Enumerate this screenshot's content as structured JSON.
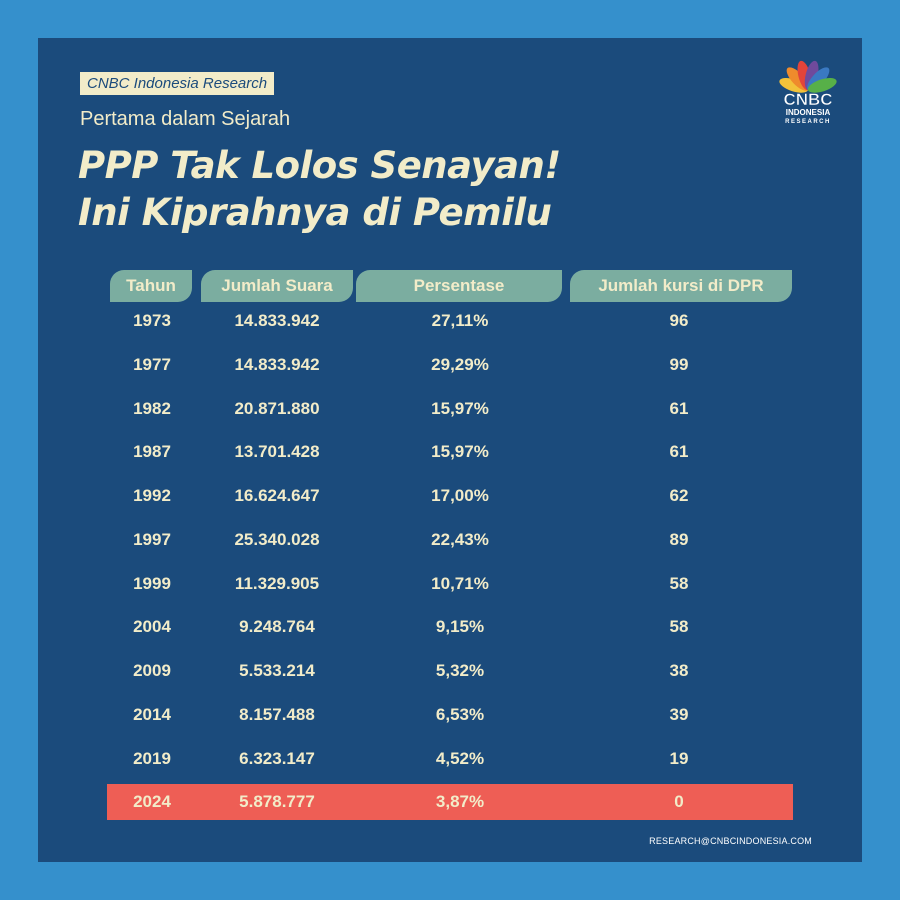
{
  "header": {
    "tag": "CNBC Indonesia Research",
    "subtitle": "Pertama dalam Sejarah",
    "title_line1": "PPP Tak Lolos Senayan!",
    "title_line2": "Ini Kiprahnya di Pemilu"
  },
  "logo": {
    "name": "CNBC",
    "line2": "INDONESIA",
    "line3": "RESEARCH",
    "petal_colors": [
      "#f2c23a",
      "#ef8b2c",
      "#e2443a",
      "#6f4a9c",
      "#3a79c2",
      "#57b048"
    ]
  },
  "table": {
    "headers": [
      "Tahun",
      "Jumlah Suara",
      "Persentase",
      "Jumlah kursi di DPR"
    ],
    "rows": [
      [
        "1973",
        "14.833.942",
        "27,11%",
        "96"
      ],
      [
        "1977",
        "14.833.942",
        "29,29%",
        "99"
      ],
      [
        "1982",
        "20.871.880",
        "15,97%",
        "61"
      ],
      [
        "1987",
        "13.701.428",
        "15,97%",
        "61"
      ],
      [
        "1992",
        "16.624.647",
        "17,00%",
        "62"
      ],
      [
        "1997",
        "25.340.028",
        "22,43%",
        "89"
      ],
      [
        "1999",
        "11.329.905",
        "10,71%",
        "58"
      ],
      [
        "2004",
        "9.248.764",
        "9,15%",
        "58"
      ],
      [
        "2009",
        "5.533.214",
        "5,32%",
        "38"
      ],
      [
        "2014",
        "8.157.488",
        "6,53%",
        "39"
      ],
      [
        "2019",
        "6.323.147",
        "4,52%",
        "19"
      ],
      [
        "2024",
        "5.878.777",
        "3,87%",
        "0"
      ]
    ],
    "highlight_row_color": "#ee5e55",
    "header_color": "#7bada0"
  },
  "footer": {
    "email": "RESEARCH@CNBCINDONESIA.COM"
  },
  "colors": {
    "background": "#3590cc",
    "panel": "#1b4b7c",
    "text": "#f2ecc9"
  }
}
